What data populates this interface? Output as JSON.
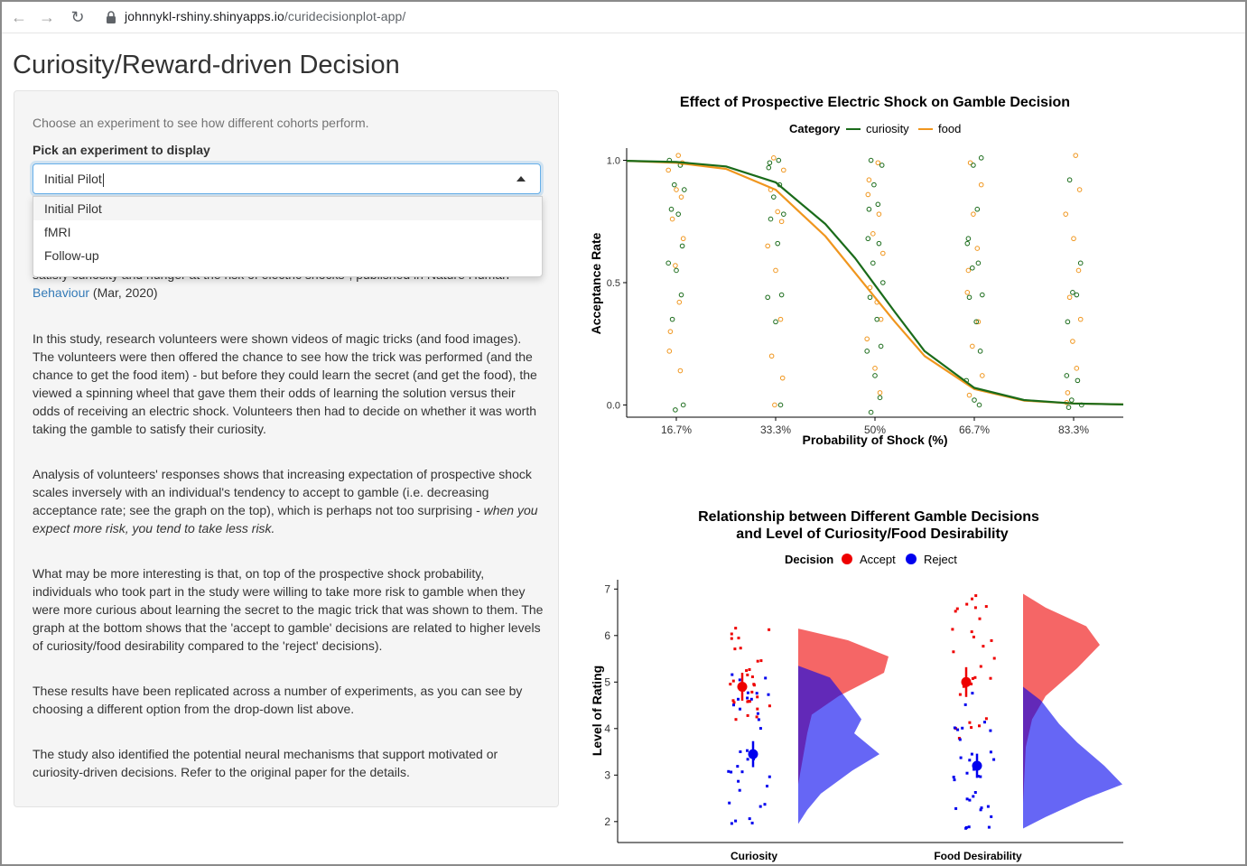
{
  "browser": {
    "url_domain": "johnnykl-rshiny.shinyapps.io",
    "url_path": "/curidecisionplot-app/"
  },
  "page": {
    "title": "Curiosity/Reward-driven Decision"
  },
  "sidebar": {
    "help_text": "Choose an experiment to see how different cohorts perform.",
    "select_label": "Pick an experiment to display",
    "select_value": "Initial Pilot",
    "options": [
      "Initial Pilot",
      "fMRI",
      "Follow-up"
    ],
    "partial_line": "satisfy curiosity and hunger at the risk of electric shocks\", published in Nature Human",
    "citation_link": "Behaviour",
    "citation_date": " (Mar, 2020)",
    "para1": "In this study, research volunteers were shown videos of magic tricks (and food images). The volunteers were then offered the chance to see how the trick was performed (and the chance to get the food item) - but before they could learn the secret (and get the food), the viewed a spinning wheel that gave them their odds of learning the solution versus their odds of receiving an electric shock. Volunteers then had to decide on whether it was worth taking the gamble to satisfy their curiosity.",
    "para2_main": "Analysis of volunteers' responses shows that increasing expectation of prospective shock scales inversely with an individual's tendency to accept to gamble (i.e. decreasing acceptance rate; see the graph on the top), which is perhaps not too surprising - ",
    "para2_italic": "when you expect more risk, you tend to take less risk.",
    "para3": "What may be more interesting is that, on top of the prospective shock probability, individuals who took part in the study were willing to take more risk to gamble when they were more curious about learning the secret to the magic trick that was shown to them. The graph at the bottom shows that the 'accept to gamble' decisions are related to higher levels of curiosity/food desirability compared to the 'reject' decisions).",
    "para4": "These results have been replicated across a number of experiments, as you can see by choosing a different option from the drop-down list above.",
    "para5": "The study also identified the potential neural mechanisms that support motivated or curiosity-driven decisions. Refer to the original paper for the details."
  },
  "chart_data": [
    {
      "type": "line",
      "title": "Effect of Prospective Electric Shock on Gamble Decision",
      "xlabel": "Probability of Shock (%)",
      "ylabel": "Acceptance Rate",
      "legend_title": "Category",
      "legend_position": "top",
      "x_ticks": [
        "16.7%",
        "33.3%",
        "50%",
        "66.7%",
        "83.3%"
      ],
      "x_tick_values": [
        1,
        2,
        3,
        4,
        5
      ],
      "y_ticks": [
        "0.0",
        "0.5",
        "1.0"
      ],
      "xlim": [
        0.5,
        5.5
      ],
      "ylim": [
        -0.05,
        1.05
      ],
      "grid": false,
      "series": [
        {
          "name": "curiosity",
          "color": "#1a6b1a",
          "curve": {
            "x": [
              0.5,
              1,
              1.5,
              2,
              2.5,
              2.8,
              3,
              3.2,
              3.5,
              4,
              4.5,
              5,
              5.5
            ],
            "y": [
              0.998,
              0.993,
              0.975,
              0.91,
              0.74,
              0.6,
              0.49,
              0.38,
              0.22,
              0.07,
              0.02,
              0.006,
              0.002
            ]
          }
        },
        {
          "name": "food",
          "color": "#f0961e",
          "curve": {
            "x": [
              0.5,
              1,
              1.5,
              2,
              2.5,
              2.8,
              3,
              3.2,
              3.5,
              4,
              4.5,
              5,
              5.5
            ],
            "y": [
              0.998,
              0.99,
              0.965,
              0.88,
              0.69,
              0.54,
              0.44,
              0.34,
              0.2,
              0.065,
              0.018,
              0.006,
              0.002
            ]
          }
        }
      ],
      "points": {
        "curiosity": [
          [
            1,
            1.0
          ],
          [
            1,
            0.98
          ],
          [
            1,
            0.9
          ],
          [
            1,
            0.88
          ],
          [
            1,
            0.8
          ],
          [
            1,
            0.78
          ],
          [
            1,
            0.65
          ],
          [
            1,
            0.58
          ],
          [
            1,
            0.55
          ],
          [
            1,
            0.45
          ],
          [
            1,
            0.35
          ],
          [
            1,
            0.0
          ],
          [
            1,
            -0.02
          ],
          [
            2,
            1.0
          ],
          [
            2,
            0.99
          ],
          [
            2,
            0.97
          ],
          [
            2,
            0.9
          ],
          [
            2,
            0.85
          ],
          [
            2,
            0.78
          ],
          [
            2,
            0.76
          ],
          [
            2,
            0.66
          ],
          [
            2,
            0.45
          ],
          [
            2,
            0.44
          ],
          [
            2,
            0.34
          ],
          [
            2,
            0.0
          ],
          [
            3,
            1.0
          ],
          [
            3,
            0.98
          ],
          [
            3,
            0.9
          ],
          [
            3,
            0.82
          ],
          [
            3,
            0.8
          ],
          [
            3,
            0.68
          ],
          [
            3,
            0.66
          ],
          [
            3,
            0.58
          ],
          [
            3,
            0.5
          ],
          [
            3,
            0.44
          ],
          [
            3,
            0.35
          ],
          [
            3,
            0.24
          ],
          [
            3,
            0.22
          ],
          [
            3,
            0.12
          ],
          [
            3,
            0.03
          ],
          [
            3,
            -0.03
          ],
          [
            4,
            1.01
          ],
          [
            4,
            0.98
          ],
          [
            4,
            0.8
          ],
          [
            4,
            0.68
          ],
          [
            4,
            0.66
          ],
          [
            4,
            0.58
          ],
          [
            4,
            0.56
          ],
          [
            4,
            0.45
          ],
          [
            4,
            0.44
          ],
          [
            4,
            0.34
          ],
          [
            4,
            0.22
          ],
          [
            4,
            0.1
          ],
          [
            4,
            0.02
          ],
          [
            4,
            0.0
          ],
          [
            5,
            0.92
          ],
          [
            5,
            0.58
          ],
          [
            5,
            0.46
          ],
          [
            5,
            0.45
          ],
          [
            5,
            0.34
          ],
          [
            5,
            0.12
          ],
          [
            5,
            0.1
          ],
          [
            5,
            0.02
          ],
          [
            5,
            0.0
          ],
          [
            5,
            -0.01
          ]
        ],
        "food": [
          [
            1,
            1.02
          ],
          [
            1,
            0.99
          ],
          [
            1,
            0.96
          ],
          [
            1,
            0.88
          ],
          [
            1,
            0.85
          ],
          [
            1,
            0.76
          ],
          [
            1,
            0.68
          ],
          [
            1,
            0.57
          ],
          [
            1,
            0.42
          ],
          [
            1,
            0.3
          ],
          [
            1,
            0.22
          ],
          [
            1,
            0.14
          ],
          [
            2,
            1.01
          ],
          [
            2,
            0.96
          ],
          [
            2,
            0.88
          ],
          [
            2,
            0.79
          ],
          [
            2,
            0.75
          ],
          [
            2,
            0.65
          ],
          [
            2,
            0.55
          ],
          [
            2,
            0.35
          ],
          [
            2,
            0.2
          ],
          [
            2,
            0.11
          ],
          [
            2,
            0.0
          ],
          [
            3,
            0.99
          ],
          [
            3,
            0.92
          ],
          [
            3,
            0.86
          ],
          [
            3,
            0.78
          ],
          [
            3,
            0.7
          ],
          [
            3,
            0.62
          ],
          [
            3,
            0.48
          ],
          [
            3,
            0.42
          ],
          [
            3,
            0.35
          ],
          [
            3,
            0.27
          ],
          [
            3,
            0.15
          ],
          [
            3,
            0.05
          ],
          [
            4,
            0.99
          ],
          [
            4,
            0.9
          ],
          [
            4,
            0.78
          ],
          [
            4,
            0.64
          ],
          [
            4,
            0.55
          ],
          [
            4,
            0.46
          ],
          [
            4,
            0.34
          ],
          [
            4,
            0.24
          ],
          [
            4,
            0.12
          ],
          [
            4,
            0.04
          ],
          [
            5,
            1.02
          ],
          [
            5,
            0.88
          ],
          [
            5,
            0.78
          ],
          [
            5,
            0.68
          ],
          [
            5,
            0.55
          ],
          [
            5,
            0.44
          ],
          [
            5,
            0.35
          ],
          [
            5,
            0.26
          ],
          [
            5,
            0.15
          ],
          [
            5,
            0.05
          ],
          [
            5,
            0.01
          ]
        ]
      }
    },
    {
      "type": "raincloud",
      "title_line1": "Relationship between Different Gamble Decisions",
      "title_line2": "and Level of Curiosity/Food Desirability",
      "xlabel": "",
      "ylabel": "Level of Rating",
      "legend_title": "Decision",
      "legend_position": "top",
      "categories": [
        "Curiosity",
        "Food Desirability"
      ],
      "y_ticks": [
        "2",
        "3",
        "4",
        "5",
        "6",
        "7"
      ],
      "ylim": [
        1.55,
        7.2
      ],
      "grid": false,
      "series": [
        {
          "name": "Accept",
          "color": "#ee0000",
          "means": [
            4.9,
            5.0
          ],
          "errors": [
            0.3,
            0.32
          ]
        },
        {
          "name": "Reject",
          "color": "#0000ee",
          "means": [
            3.45,
            3.2
          ],
          "errors": [
            0.28,
            0.26
          ]
        }
      ]
    }
  ]
}
